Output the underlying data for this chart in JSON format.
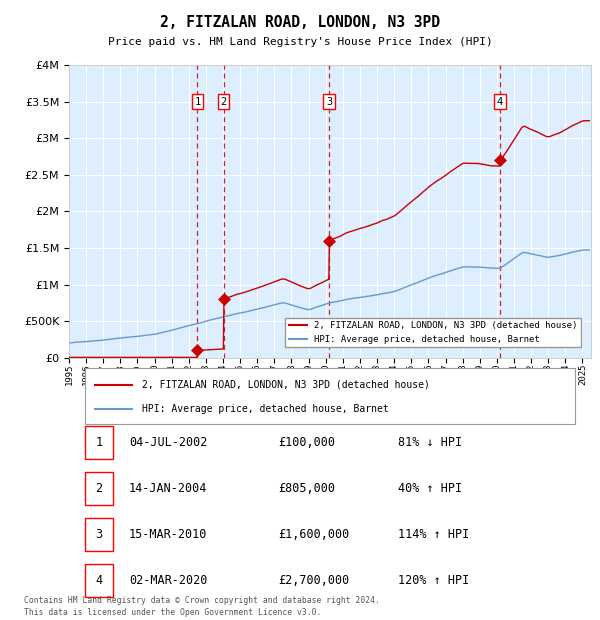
{
  "title": "2, FITZALAN ROAD, LONDON, N3 3PD",
  "subtitle": "Price paid vs. HM Land Registry's House Price Index (HPI)",
  "footer": "Contains HM Land Registry data © Crown copyright and database right 2024.\nThis data is licensed under the Open Government Licence v3.0.",
  "legend_house": "2, FITZALAN ROAD, LONDON, N3 3PD (detached house)",
  "legend_hpi": "HPI: Average price, detached house, Barnet",
  "house_color": "#cc0000",
  "hpi_color": "#6699cc",
  "background_color": "#ddeeff",
  "transactions": [
    {
      "num": 1,
      "date": "04-JUL-2002",
      "price": 100000,
      "pct": "81%",
      "dir": "↓",
      "year": 2002.5
    },
    {
      "num": 2,
      "date": "14-JAN-2004",
      "price": 805000,
      "pct": "40%",
      "dir": "↑",
      "year": 2004.04
    },
    {
      "num": 3,
      "date": "15-MAR-2010",
      "price": 1600000,
      "pct": "114%",
      "dir": "↑",
      "year": 2010.2
    },
    {
      "num": 4,
      "date": "02-MAR-2020",
      "price": 2700000,
      "pct": "120%",
      "dir": "↑",
      "year": 2020.17
    }
  ],
  "xlim": [
    1995,
    2025.5
  ],
  "ylim": [
    0,
    4000000
  ],
  "yticks": [
    0,
    500000,
    1000000,
    1500000,
    2000000,
    2500000,
    3000000,
    3500000,
    4000000
  ],
  "hpi_anchors": [
    [
      1995.0,
      200000
    ],
    [
      2000.0,
      330000
    ],
    [
      2004.0,
      560000
    ],
    [
      2007.5,
      750000
    ],
    [
      2009.0,
      650000
    ],
    [
      2010.2,
      745000
    ],
    [
      2014.0,
      900000
    ],
    [
      2016.0,
      1100000
    ],
    [
      2018.0,
      1250000
    ],
    [
      2020.17,
      1225000
    ],
    [
      2021.5,
      1450000
    ],
    [
      2023.0,
      1380000
    ],
    [
      2025.0,
      1480000
    ]
  ]
}
